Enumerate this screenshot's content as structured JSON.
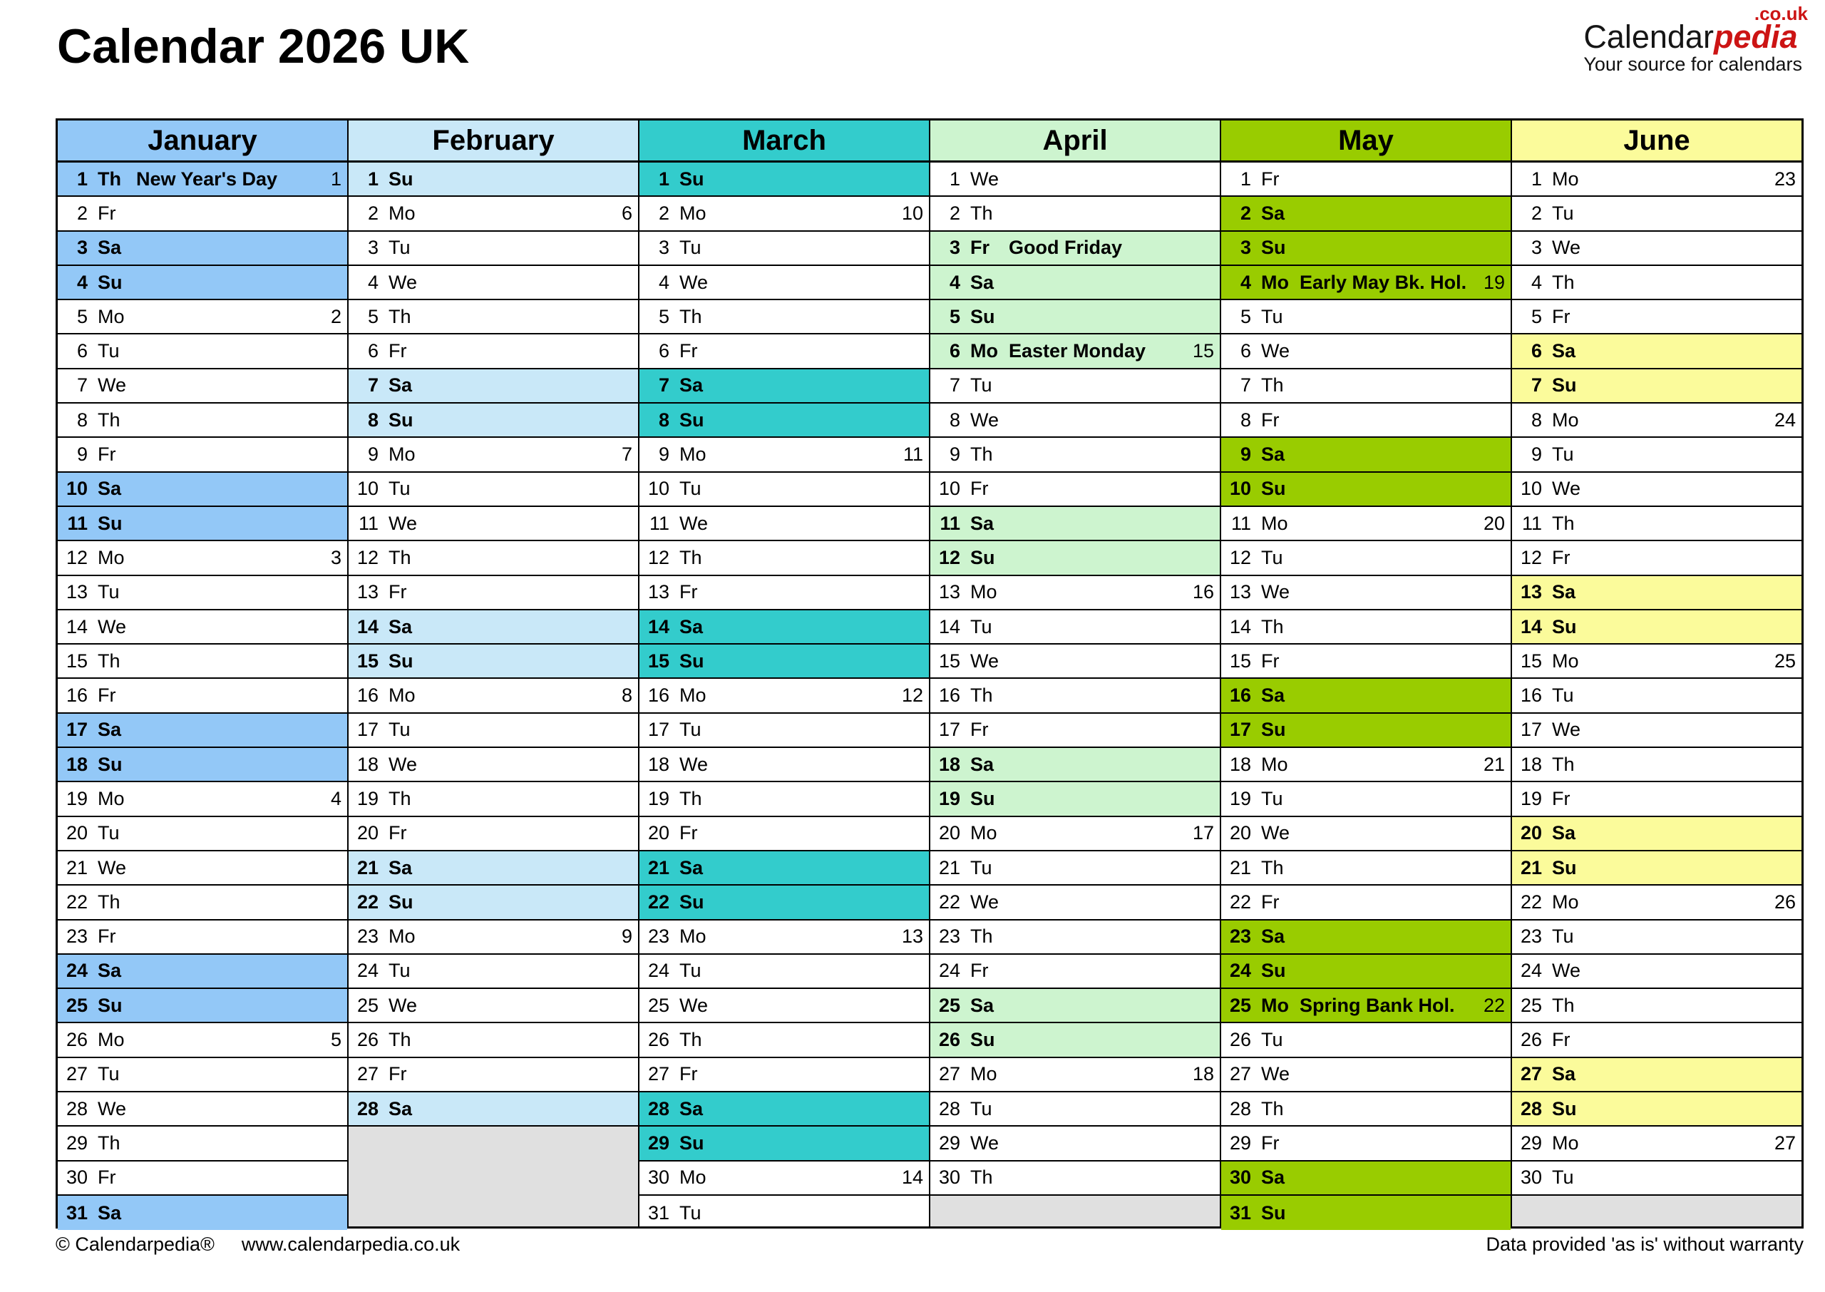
{
  "title": "Calendar 2026 UK",
  "logo": {
    "name_black": "Calendar",
    "name_red": "pedia",
    "domain": ".co.uk",
    "tagline": "Your source for calendars"
  },
  "colors": {
    "logo_red": "#cc1414",
    "border": "#000000",
    "empty_cell": "#e0e0e0",
    "text": "#000000"
  },
  "day_format": [
    "day",
    "weekday",
    "holiday",
    "week_number",
    "highlighted"
  ],
  "months": [
    {
      "name": "January",
      "color": "#93c8f7",
      "empty_rows": 0,
      "days": [
        [
          1,
          "Th",
          "New Year's Day",
          1,
          1
        ],
        [
          2,
          "Fr",
          "",
          "",
          0
        ],
        [
          3,
          "Sa",
          "",
          "",
          1
        ],
        [
          4,
          "Su",
          "",
          "",
          1
        ],
        [
          5,
          "Mo",
          "",
          2,
          0
        ],
        [
          6,
          "Tu",
          "",
          "",
          0
        ],
        [
          7,
          "We",
          "",
          "",
          0
        ],
        [
          8,
          "Th",
          "",
          "",
          0
        ],
        [
          9,
          "Fr",
          "",
          "",
          0
        ],
        [
          10,
          "Sa",
          "",
          "",
          1
        ],
        [
          11,
          "Su",
          "",
          "",
          1
        ],
        [
          12,
          "Mo",
          "",
          3,
          0
        ],
        [
          13,
          "Tu",
          "",
          "",
          0
        ],
        [
          14,
          "We",
          "",
          "",
          0
        ],
        [
          15,
          "Th",
          "",
          "",
          0
        ],
        [
          16,
          "Fr",
          "",
          "",
          0
        ],
        [
          17,
          "Sa",
          "",
          "",
          1
        ],
        [
          18,
          "Su",
          "",
          "",
          1
        ],
        [
          19,
          "Mo",
          "",
          4,
          0
        ],
        [
          20,
          "Tu",
          "",
          "",
          0
        ],
        [
          21,
          "We",
          "",
          "",
          0
        ],
        [
          22,
          "Th",
          "",
          "",
          0
        ],
        [
          23,
          "Fr",
          "",
          "",
          0
        ],
        [
          24,
          "Sa",
          "",
          "",
          1
        ],
        [
          25,
          "Su",
          "",
          "",
          1
        ],
        [
          26,
          "Mo",
          "",
          5,
          0
        ],
        [
          27,
          "Tu",
          "",
          "",
          0
        ],
        [
          28,
          "We",
          "",
          "",
          0
        ],
        [
          29,
          "Th",
          "",
          "",
          0
        ],
        [
          30,
          "Fr",
          "",
          "",
          0
        ],
        [
          31,
          "Sa",
          "",
          "",
          1
        ]
      ]
    },
    {
      "name": "February",
      "color": "#c9e8f8",
      "empty_rows": 3,
      "days": [
        [
          1,
          "Su",
          "",
          "",
          1
        ],
        [
          2,
          "Mo",
          "",
          6,
          0
        ],
        [
          3,
          "Tu",
          "",
          "",
          0
        ],
        [
          4,
          "We",
          "",
          "",
          0
        ],
        [
          5,
          "Th",
          "",
          "",
          0
        ],
        [
          6,
          "Fr",
          "",
          "",
          0
        ],
        [
          7,
          "Sa",
          "",
          "",
          1
        ],
        [
          8,
          "Su",
          "",
          "",
          1
        ],
        [
          9,
          "Mo",
          "",
          7,
          0
        ],
        [
          10,
          "Tu",
          "",
          "",
          0
        ],
        [
          11,
          "We",
          "",
          "",
          0
        ],
        [
          12,
          "Th",
          "",
          "",
          0
        ],
        [
          13,
          "Fr",
          "",
          "",
          0
        ],
        [
          14,
          "Sa",
          "",
          "",
          1
        ],
        [
          15,
          "Su",
          "",
          "",
          1
        ],
        [
          16,
          "Mo",
          "",
          8,
          0
        ],
        [
          17,
          "Tu",
          "",
          "",
          0
        ],
        [
          18,
          "We",
          "",
          "",
          0
        ],
        [
          19,
          "Th",
          "",
          "",
          0
        ],
        [
          20,
          "Fr",
          "",
          "",
          0
        ],
        [
          21,
          "Sa",
          "",
          "",
          1
        ],
        [
          22,
          "Su",
          "",
          "",
          1
        ],
        [
          23,
          "Mo",
          "",
          9,
          0
        ],
        [
          24,
          "Tu",
          "",
          "",
          0
        ],
        [
          25,
          "We",
          "",
          "",
          0
        ],
        [
          26,
          "Th",
          "",
          "",
          0
        ],
        [
          27,
          "Fr",
          "",
          "",
          0
        ],
        [
          28,
          "Sa",
          "",
          "",
          1
        ]
      ]
    },
    {
      "name": "March",
      "color": "#33cccc",
      "empty_rows": 0,
      "days": [
        [
          1,
          "Su",
          "",
          "",
          1
        ],
        [
          2,
          "Mo",
          "",
          10,
          0
        ],
        [
          3,
          "Tu",
          "",
          "",
          0
        ],
        [
          4,
          "We",
          "",
          "",
          0
        ],
        [
          5,
          "Th",
          "",
          "",
          0
        ],
        [
          6,
          "Fr",
          "",
          "",
          0
        ],
        [
          7,
          "Sa",
          "",
          "",
          1
        ],
        [
          8,
          "Su",
          "",
          "",
          1
        ],
        [
          9,
          "Mo",
          "",
          11,
          0
        ],
        [
          10,
          "Tu",
          "",
          "",
          0
        ],
        [
          11,
          "We",
          "",
          "",
          0
        ],
        [
          12,
          "Th",
          "",
          "",
          0
        ],
        [
          13,
          "Fr",
          "",
          "",
          0
        ],
        [
          14,
          "Sa",
          "",
          "",
          1
        ],
        [
          15,
          "Su",
          "",
          "",
          1
        ],
        [
          16,
          "Mo",
          "",
          12,
          0
        ],
        [
          17,
          "Tu",
          "",
          "",
          0
        ],
        [
          18,
          "We",
          "",
          "",
          0
        ],
        [
          19,
          "Th",
          "",
          "",
          0
        ],
        [
          20,
          "Fr",
          "",
          "",
          0
        ],
        [
          21,
          "Sa",
          "",
          "",
          1
        ],
        [
          22,
          "Su",
          "",
          "",
          1
        ],
        [
          23,
          "Mo",
          "",
          13,
          0
        ],
        [
          24,
          "Tu",
          "",
          "",
          0
        ],
        [
          25,
          "We",
          "",
          "",
          0
        ],
        [
          26,
          "Th",
          "",
          "",
          0
        ],
        [
          27,
          "Fr",
          "",
          "",
          0
        ],
        [
          28,
          "Sa",
          "",
          "",
          1
        ],
        [
          29,
          "Su",
          "",
          "",
          1
        ],
        [
          30,
          "Mo",
          "",
          14,
          0
        ],
        [
          31,
          "Tu",
          "",
          "",
          0
        ]
      ]
    },
    {
      "name": "April",
      "color": "#cdf4cf",
      "empty_rows": 1,
      "days": [
        [
          1,
          "We",
          "",
          "",
          0
        ],
        [
          2,
          "Th",
          "",
          "",
          0
        ],
        [
          3,
          "Fr",
          "Good Friday",
          "",
          1
        ],
        [
          4,
          "Sa",
          "",
          "",
          1
        ],
        [
          5,
          "Su",
          "",
          "",
          1
        ],
        [
          6,
          "Mo",
          "Easter Monday",
          15,
          1
        ],
        [
          7,
          "Tu",
          "",
          "",
          0
        ],
        [
          8,
          "We",
          "",
          "",
          0
        ],
        [
          9,
          "Th",
          "",
          "",
          0
        ],
        [
          10,
          "Fr",
          "",
          "",
          0
        ],
        [
          11,
          "Sa",
          "",
          "",
          1
        ],
        [
          12,
          "Su",
          "",
          "",
          1
        ],
        [
          13,
          "Mo",
          "",
          16,
          0
        ],
        [
          14,
          "Tu",
          "",
          "",
          0
        ],
        [
          15,
          "We",
          "",
          "",
          0
        ],
        [
          16,
          "Th",
          "",
          "",
          0
        ],
        [
          17,
          "Fr",
          "",
          "",
          0
        ],
        [
          18,
          "Sa",
          "",
          "",
          1
        ],
        [
          19,
          "Su",
          "",
          "",
          1
        ],
        [
          20,
          "Mo",
          "",
          17,
          0
        ],
        [
          21,
          "Tu",
          "",
          "",
          0
        ],
        [
          22,
          "We",
          "",
          "",
          0
        ],
        [
          23,
          "Th",
          "",
          "",
          0
        ],
        [
          24,
          "Fr",
          "",
          "",
          0
        ],
        [
          25,
          "Sa",
          "",
          "",
          1
        ],
        [
          26,
          "Su",
          "",
          "",
          1
        ],
        [
          27,
          "Mo",
          "",
          18,
          0
        ],
        [
          28,
          "Tu",
          "",
          "",
          0
        ],
        [
          29,
          "We",
          "",
          "",
          0
        ],
        [
          30,
          "Th",
          "",
          "",
          0
        ]
      ]
    },
    {
      "name": "May",
      "color": "#99cc00",
      "empty_rows": 0,
      "days": [
        [
          1,
          "Fr",
          "",
          "",
          0
        ],
        [
          2,
          "Sa",
          "",
          "",
          1
        ],
        [
          3,
          "Su",
          "",
          "",
          1
        ],
        [
          4,
          "Mo",
          "Early May Bk. Hol.",
          19,
          1
        ],
        [
          5,
          "Tu",
          "",
          "",
          0
        ],
        [
          6,
          "We",
          "",
          "",
          0
        ],
        [
          7,
          "Th",
          "",
          "",
          0
        ],
        [
          8,
          "Fr",
          "",
          "",
          0
        ],
        [
          9,
          "Sa",
          "",
          "",
          1
        ],
        [
          10,
          "Su",
          "",
          "",
          1
        ],
        [
          11,
          "Mo",
          "",
          20,
          0
        ],
        [
          12,
          "Tu",
          "",
          "",
          0
        ],
        [
          13,
          "We",
          "",
          "",
          0
        ],
        [
          14,
          "Th",
          "",
          "",
          0
        ],
        [
          15,
          "Fr",
          "",
          "",
          0
        ],
        [
          16,
          "Sa",
          "",
          "",
          1
        ],
        [
          17,
          "Su",
          "",
          "",
          1
        ],
        [
          18,
          "Mo",
          "",
          21,
          0
        ],
        [
          19,
          "Tu",
          "",
          "",
          0
        ],
        [
          20,
          "We",
          "",
          "",
          0
        ],
        [
          21,
          "Th",
          "",
          "",
          0
        ],
        [
          22,
          "Fr",
          "",
          "",
          0
        ],
        [
          23,
          "Sa",
          "",
          "",
          1
        ],
        [
          24,
          "Su",
          "",
          "",
          1
        ],
        [
          25,
          "Mo",
          "Spring Bank Hol.",
          22,
          1
        ],
        [
          26,
          "Tu",
          "",
          "",
          0
        ],
        [
          27,
          "We",
          "",
          "",
          0
        ],
        [
          28,
          "Th",
          "",
          "",
          0
        ],
        [
          29,
          "Fr",
          "",
          "",
          0
        ],
        [
          30,
          "Sa",
          "",
          "",
          1
        ],
        [
          31,
          "Su",
          "",
          "",
          1
        ]
      ]
    },
    {
      "name": "June",
      "color": "#fbfb9b",
      "empty_rows": 1,
      "days": [
        [
          1,
          "Mo",
          "",
          23,
          0
        ],
        [
          2,
          "Tu",
          "",
          "",
          0
        ],
        [
          3,
          "We",
          "",
          "",
          0
        ],
        [
          4,
          "Th",
          "",
          "",
          0
        ],
        [
          5,
          "Fr",
          "",
          "",
          0
        ],
        [
          6,
          "Sa",
          "",
          "",
          1
        ],
        [
          7,
          "Su",
          "",
          "",
          1
        ],
        [
          8,
          "Mo",
          "",
          24,
          0
        ],
        [
          9,
          "Tu",
          "",
          "",
          0
        ],
        [
          10,
          "We",
          "",
          "",
          0
        ],
        [
          11,
          "Th",
          "",
          "",
          0
        ],
        [
          12,
          "Fr",
          "",
          "",
          0
        ],
        [
          13,
          "Sa",
          "",
          "",
          1
        ],
        [
          14,
          "Su",
          "",
          "",
          1
        ],
        [
          15,
          "Mo",
          "",
          25,
          0
        ],
        [
          16,
          "Tu",
          "",
          "",
          0
        ],
        [
          17,
          "We",
          "",
          "",
          0
        ],
        [
          18,
          "Th",
          "",
          "",
          0
        ],
        [
          19,
          "Fr",
          "",
          "",
          0
        ],
        [
          20,
          "Sa",
          "",
          "",
          1
        ],
        [
          21,
          "Su",
          "",
          "",
          1
        ],
        [
          22,
          "Mo",
          "",
          26,
          0
        ],
        [
          23,
          "Tu",
          "",
          "",
          0
        ],
        [
          24,
          "We",
          "",
          "",
          0
        ],
        [
          25,
          "Th",
          "",
          "",
          0
        ],
        [
          26,
          "Fr",
          "",
          "",
          0
        ],
        [
          27,
          "Sa",
          "",
          "",
          1
        ],
        [
          28,
          "Su",
          "",
          "",
          1
        ],
        [
          29,
          "Mo",
          "",
          27,
          0
        ],
        [
          30,
          "Tu",
          "",
          "",
          0
        ]
      ]
    }
  ],
  "footer": {
    "copyright": "© Calendarpedia®",
    "url": "www.calendarpedia.co.uk",
    "disclaimer": "Data provided 'as is' without warranty"
  }
}
